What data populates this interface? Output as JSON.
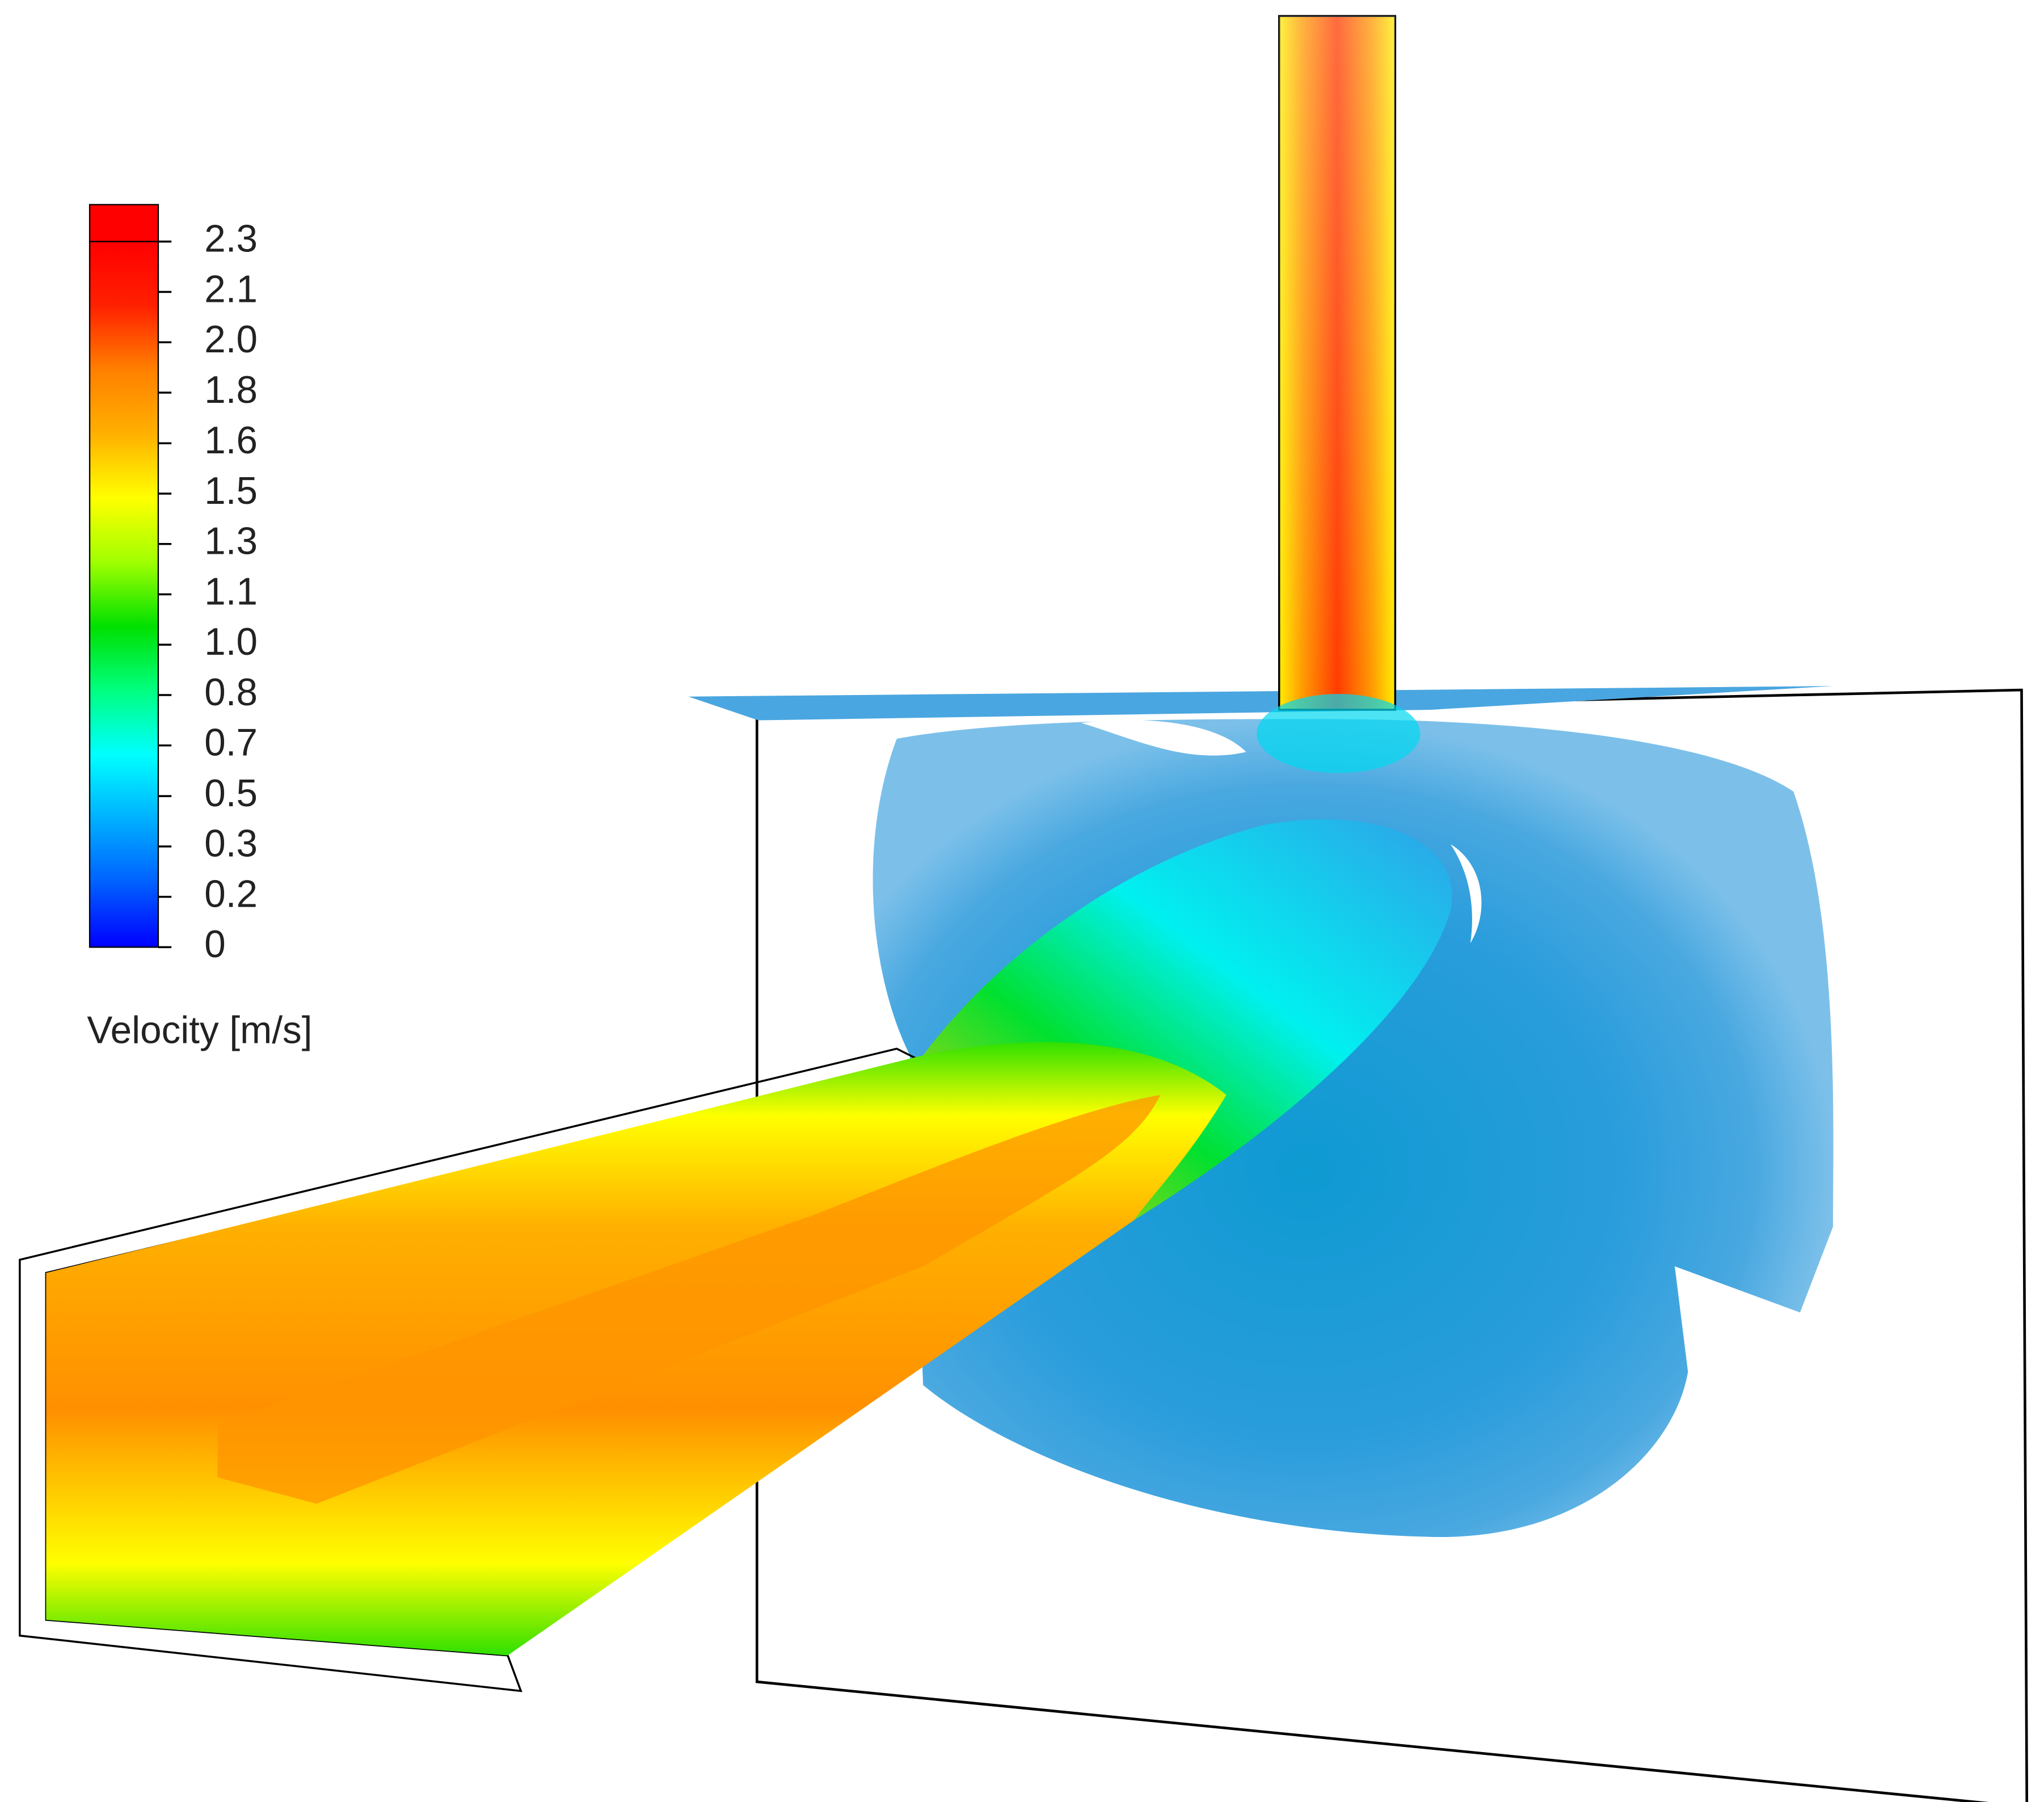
{
  "chart_data": {
    "type": "contour",
    "colorbar_label": "Velocity [m/s]",
    "ylim": [
      0,
      2.298
    ],
    "yticks": [
      0,
      {
        "value": 0.164,
        "label": "0.2"
      },
      {
        "value": 0.328,
        "label": "0.3"
      },
      {
        "value": 0.492,
        "label": "0.5"
      },
      {
        "value": 0.657,
        "label": "0.7"
      },
      {
        "value": 0.821,
        "label": "0.8"
      },
      {
        "value": 0.985,
        "label": "1.0"
      },
      {
        "value": 1.149,
        "label": "1.1"
      },
      {
        "value": 1.313,
        "label": "1.3"
      },
      {
        "value": 1.477,
        "label": "1.5"
      },
      {
        "value": 1.641,
        "label": "1.6"
      },
      {
        "value": 1.806,
        "label": "1.8"
      },
      {
        "value": 1.97,
        "label": "2.0"
      },
      {
        "value": 2.134,
        "label": "2.1"
      },
      {
        "value": 2.298,
        "label": "2.3"
      }
    ],
    "colormap": [
      "#0000ff",
      "#0060ff",
      "#00b0ff",
      "#00ffff",
      "#00ff80",
      "#00e000",
      "#a0ff00",
      "#ffff00",
      "#ffb000",
      "#ff8000",
      "#ff2000",
      "#ff0000"
    ]
  }
}
